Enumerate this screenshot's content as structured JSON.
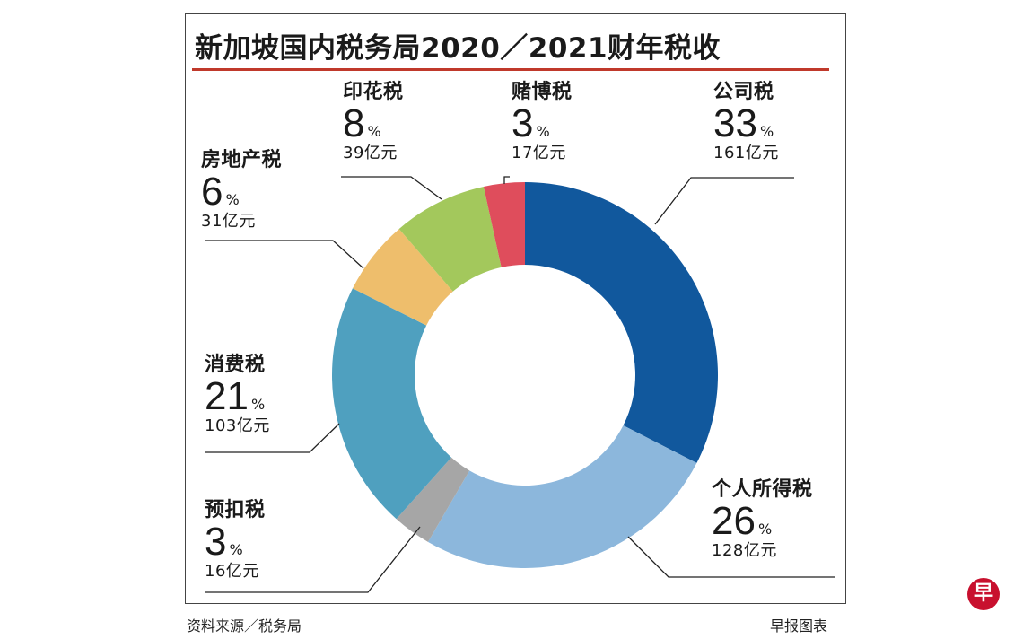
{
  "title": "新加坡国内税务局2020／2021财年税收",
  "source": "资料来源／税务局",
  "credit": "早报图表",
  "logo_text": "早",
  "chart_data": {
    "type": "pie",
    "variant": "donut",
    "title": "新加坡国内税务局2020／2021财年税收",
    "percent_symbol": "%",
    "slices": [
      {
        "name": "公司税",
        "percent": 33,
        "amount": "161亿元",
        "value": 161,
        "color": "#11589d"
      },
      {
        "name": "个人所得税",
        "percent": 26,
        "amount": "128亿元",
        "value": 128,
        "color": "#8cb7dc"
      },
      {
        "name": "预扣税",
        "percent": 3,
        "amount": "16亿元",
        "value": 16,
        "color": "#a6a6a6"
      },
      {
        "name": "消费税",
        "percent": 21,
        "amount": "103亿元",
        "value": 103,
        "color": "#4fa0bf"
      },
      {
        "name": "房地产税",
        "percent": 6,
        "amount": "31亿元",
        "value": 31,
        "color": "#eebe6c"
      },
      {
        "name": "印花税",
        "percent": 8,
        "amount": "39亿元",
        "value": 39,
        "color": "#a3c85c"
      },
      {
        "name": "赌博税",
        "percent": 3,
        "amount": "17亿元",
        "value": 17,
        "color": "#df4d5c"
      }
    ]
  }
}
